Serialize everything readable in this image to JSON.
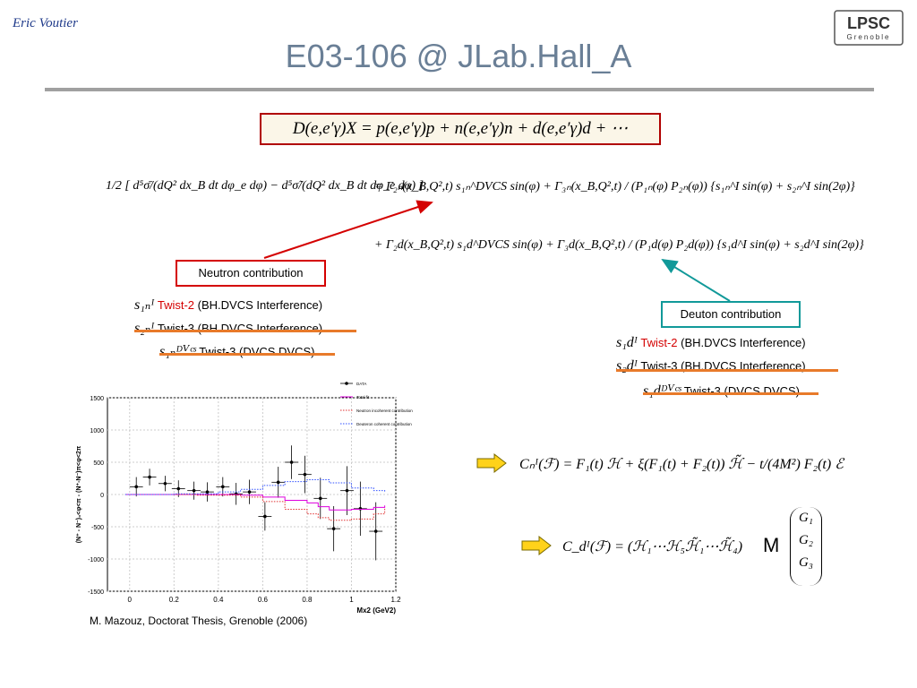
{
  "header": {
    "author": "Eric Voutier",
    "title": "E03-106 @ JLab.Hall_A",
    "logo_main": "LPSC",
    "logo_sub": "Grenoble"
  },
  "equations": {
    "boxed": "D(e,e′γ)X = p(e,e′γ)p + n(e,e′γ)n + d(e,e′γ)d + ⋯",
    "line1_lhs": "1/2 [ d⁵σ̄/(dQ² dx_B dt dφ_e dφ) − d⁵σ̃/(dQ² dx_B dt dφ_e dφ) ]",
    "line1_rhs": "= Γ₂ₙ(x_B,Q²,t) s₁ₙ^DVCS sin(φ) + Γ₃ₙ(x_B,Q²,t) / (P₁ₙ(φ) P₂ₙ(φ)) {s₁ₙ^I sin(φ) + s₂ₙ^I sin(2φ)}",
    "line2_rhs": "+ Γ₂d(x_B,Q²,t) s₁d^DVCS sin(φ) + Γ₃d(x_B,Q²,t) / (P₁d(φ) P₂d(φ)) {s₁d^I sin(φ) + s₂d^I sin(2φ)}",
    "cn": "Cₙᴵ(ℱ) = F₁(t) ℋ + ξ(F₁(t) + F₂(t)) ℋ̃ − t/(4M²) F₂(t) ℰ",
    "cd": "C_dᴵ(ℱ) = (ℋ₁⋯ℋ₅ℋ̃₁⋯ℋ̃₄)",
    "cd_m": "M",
    "cd_vec": [
      "G₁",
      "G₂",
      "G₃"
    ]
  },
  "neutron": {
    "label": "Neutron contribution",
    "rows": [
      {
        "sym": "s₁ₙᴵ",
        "twist": "Twist-2",
        "desc": "(BH.DVCS Interference)"
      },
      {
        "sym": "s₂ₙᴵ",
        "twist": "Twist-3",
        "desc": "(BH.DVCS Interference)"
      },
      {
        "sym": "s₁ₙᴰⱽᶜˢ",
        "twist": "Twist-3",
        "desc": "(DVCS.DVCS)"
      }
    ]
  },
  "deuton": {
    "label": "Deuton contribution",
    "rows": [
      {
        "sym": "s₁dᴵ",
        "twist": "Twist-2",
        "desc": "(BH.DVCS Interference)"
      },
      {
        "sym": "s₂dᴵ",
        "twist": "Twist-3",
        "desc": "(BH.DVCS Interference)"
      },
      {
        "sym": "s₁dᴰⱽᶜˢ",
        "twist": "Twist-3",
        "desc": "(DVCS.DVCS)"
      }
    ]
  },
  "caption": "M. Mazouz, Doctorat Thesis, Grenoble (2006)",
  "chart_data": {
    "type": "scatter",
    "xlabel": "Mx2 (GeV2)",
    "ylabel": "(N⁺ - N⁻)₀<φ<π - (N⁺-N⁻)π<φ<2π",
    "xlim": [
      -0.1,
      1.2
    ],
    "ylim": [
      -1500,
      1500
    ],
    "xticks": [
      0,
      0.2,
      0.4,
      0.6,
      0.8,
      1,
      1.2
    ],
    "yticks": [
      -1500,
      -1000,
      -500,
      0,
      500,
      1000,
      1500
    ],
    "legend_position": "top-right",
    "series": [
      {
        "name": "DATA",
        "color": "#000000",
        "style": "points",
        "x": [
          0.03,
          0.09,
          0.16,
          0.22,
          0.29,
          0.35,
          0.42,
          0.48,
          0.54,
          0.61,
          0.67,
          0.73,
          0.79,
          0.86,
          0.92,
          0.98,
          1.04,
          1.11
        ],
        "y": [
          120,
          270,
          170,
          90,
          60,
          40,
          120,
          10,
          40,
          -340,
          190,
          500,
          310,
          -60,
          -530,
          60,
          -220,
          -570
        ],
        "err": [
          150,
          130,
          120,
          130,
          140,
          150,
          150,
          170,
          190,
          220,
          240,
          260,
          290,
          320,
          350,
          380,
          420,
          450
        ]
      },
      {
        "name": "Total fit",
        "color": "#dd00dd",
        "style": "step",
        "x": [
          -0.02,
          0.3,
          0.5,
          0.6,
          0.7,
          0.8,
          0.85,
          0.9,
          1.0,
          1.1,
          1.15
        ],
        "y": [
          0,
          0,
          -10,
          -40,
          -90,
          -130,
          -190,
          -240,
          -230,
          -200,
          -170
        ]
      },
      {
        "name": "Neutron incoherent contribution",
        "color": "#e03030",
        "style": "dotted-step",
        "x": [
          -0.02,
          0.3,
          0.5,
          0.6,
          0.7,
          0.8,
          0.85,
          0.9,
          1.0,
          1.1,
          1.15
        ],
        "y": [
          0,
          -10,
          -40,
          -110,
          -230,
          -300,
          -360,
          -400,
          -380,
          -300,
          -210
        ]
      },
      {
        "name": "Deuteron coherent contribution",
        "color": "#3050ff",
        "style": "dotted-step",
        "x": [
          -0.02,
          0.2,
          0.4,
          0.5,
          0.6,
          0.7,
          0.8,
          0.9,
          1.0,
          1.1,
          1.15
        ],
        "y": [
          0,
          10,
          40,
          80,
          140,
          200,
          230,
          180,
          100,
          60,
          30
        ]
      }
    ]
  }
}
